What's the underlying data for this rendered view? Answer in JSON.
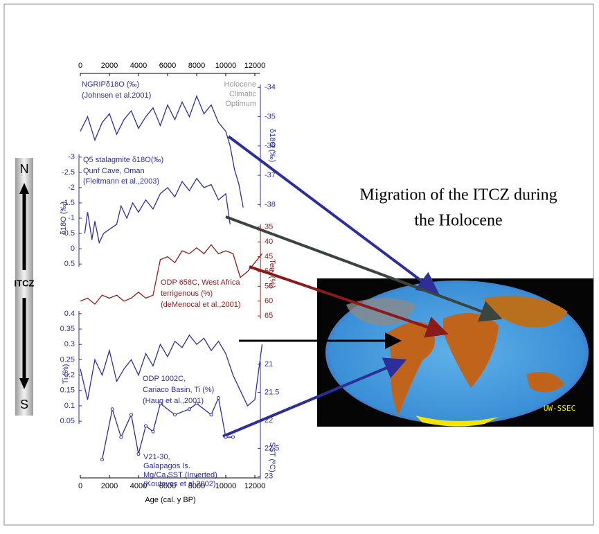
{
  "shared_axis": {
    "xlim": [
      0,
      12500
    ],
    "xticks": [
      0,
      2000,
      4000,
      6000,
      8000,
      10000,
      12000
    ],
    "xlabel": "Age (cal. y BP)"
  },
  "scale": {
    "north": "N",
    "south": "S",
    "label": "ITCZ"
  },
  "headline": [
    "Migration of the ITCZ during",
    "the Holocene"
  ],
  "map_credit": "UW-SSEC",
  "chart_data": [
    {
      "type": "line",
      "side": "right",
      "color": "#2e2e9a",
      "ylabel": "δ18O (‰)",
      "ylim": [
        -38.7,
        -33.5
      ],
      "yticks": [
        -34,
        -35,
        -36,
        -37,
        -38
      ],
      "annotation": [
        "NGRIPδ18O (‰)",
        "(Johnsen et al.2001)"
      ],
      "note": [
        "Holocene",
        "Climatic",
        "Optimum"
      ],
      "x": [
        0,
        500,
        1000,
        1500,
        2000,
        2500,
        3000,
        3500,
        4000,
        4500,
        5000,
        5500,
        6000,
        6500,
        7000,
        7500,
        8000,
        8500,
        9000,
        9500,
        10000,
        10300,
        10600,
        10900,
        11200
      ],
      "values": [
        -35.5,
        -35.0,
        -35.8,
        -35.2,
        -34.9,
        -35.6,
        -35.1,
        -34.8,
        -35.4,
        -35.0,
        -34.7,
        -35.3,
        -34.6,
        -35.1,
        -34.5,
        -35.0,
        -34.3,
        -34.9,
        -34.6,
        -35.2,
        -35.5,
        -36.0,
        -36.8,
        -37.3,
        -38.1
      ]
    },
    {
      "type": "line",
      "side": "left",
      "color": "#2e2e9a",
      "ylabel": "δ18O (‰)",
      "ylim": [
        0.7,
        -3.2
      ],
      "yticks": [
        -3,
        -2.5,
        -2,
        -1.5,
        -1,
        -0.5,
        0,
        0.5
      ],
      "annotation": [
        "Q5 stalagmite δ18O(‰)",
        "Qunf Cave, Oman",
        "(Fleitmann et al.,2003)"
      ],
      "x": [
        300,
        500,
        800,
        1000,
        1300,
        1600,
        2500,
        2800,
        3200,
        3600,
        4000,
        4500,
        5000,
        5500,
        6000,
        6500,
        7000,
        7500,
        8000,
        8500,
        9000,
        9500,
        10000,
        10300
      ],
      "values": [
        -0.5,
        -1.2,
        -0.3,
        -0.9,
        -0.2,
        -0.5,
        -0.8,
        -1.4,
        -1.0,
        -1.5,
        -1.2,
        -1.6,
        -1.3,
        -1.8,
        -2.0,
        -1.7,
        -2.2,
        -1.9,
        -2.3,
        -2.0,
        -2.1,
        -1.6,
        -1.8,
        -0.8
      ]
    },
    {
      "type": "line",
      "side": "right",
      "color": "#8b1a1a",
      "ylabel": "Terr. (%)",
      "ylim": [
        68,
        32
      ],
      "yticks": [
        35,
        40,
        45,
        50,
        55,
        60,
        65
      ],
      "annotation": [
        "ODP 658C, West Africa",
        "terrigenous (%)",
        "(deMenocal et al.,2001)"
      ],
      "x": [
        0,
        500,
        1000,
        1500,
        2000,
        2500,
        3000,
        3500,
        4000,
        4500,
        5000,
        5500,
        6000,
        6500,
        7000,
        7500,
        8000,
        8500,
        9000,
        9500,
        10000,
        10500,
        11000,
        11500,
        12000,
        12500
      ],
      "values": [
        60,
        59,
        61,
        58,
        59,
        58,
        60,
        59,
        57,
        59,
        58,
        46,
        45,
        47,
        43,
        44,
        42,
        44,
        41,
        44,
        43,
        44,
        52,
        50,
        47,
        44
      ]
    },
    {
      "type": "line",
      "side": "left",
      "color": "#2e2e9a",
      "ylabel": "Ti (%)",
      "ylim": [
        0.03,
        0.42
      ],
      "yticks": [
        0.4,
        0.35,
        0.3,
        0.25,
        0.2,
        0.15,
        0.1,
        0.05
      ],
      "annotation": [
        "ODP 1002C,",
        "Cariaco Basin, Ti (%)",
        "(Haug et al.,2001)"
      ],
      "x": [
        0,
        500,
        1000,
        1500,
        2000,
        2500,
        3000,
        3500,
        4000,
        4500,
        5000,
        5500,
        6000,
        6500,
        7000,
        7500,
        8000,
        8500,
        9000,
        9500,
        10000,
        10500,
        11000,
        11500,
        12000,
        12500
      ],
      "values": [
        0.22,
        0.12,
        0.25,
        0.2,
        0.28,
        0.18,
        0.22,
        0.25,
        0.2,
        0.27,
        0.23,
        0.3,
        0.26,
        0.31,
        0.29,
        0.33,
        0.3,
        0.32,
        0.28,
        0.31,
        0.27,
        0.2,
        0.15,
        0.1,
        0.12,
        0.3
      ]
    },
    {
      "type": "scatter-line",
      "side": "right",
      "color": "#2e2e9a",
      "ylabel": "SST (ºC)",
      "ylim": [
        23.2,
        20.5
      ],
      "yticks": [
        21,
        21.5,
        22,
        22.5,
        23
      ],
      "annotation": [
        "V21-30,",
        "Galapagos Is.",
        "Mg/Ca SST (Inverted)",
        "(Koutavas et al.2002)"
      ],
      "x": [
        1500,
        2200,
        2800,
        3500,
        4000,
        4500,
        5000,
        5500,
        6500,
        7500,
        8000,
        9000,
        9500,
        10000,
        10500
      ],
      "values": [
        22.7,
        21.8,
        22.3,
        21.9,
        22.6,
        22.1,
        22.2,
        21.7,
        21.9,
        21.8,
        21.7,
        21.9,
        21.6,
        22.3,
        22.3
      ]
    }
  ]
}
